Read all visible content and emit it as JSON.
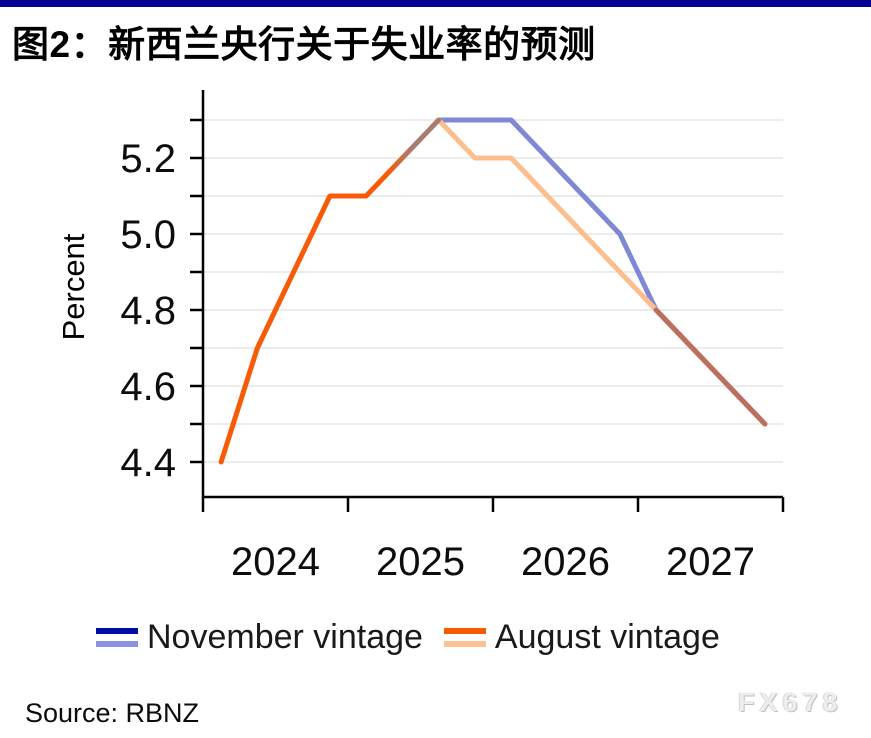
{
  "header": {
    "title": "图2：新西兰央行关于失业率的预测",
    "accent_bar_color": "#05008f"
  },
  "chart_data": {
    "type": "line",
    "title": "图2：新西兰央行关于失业率的预测",
    "xlabel": "",
    "ylabel": "Percent",
    "ylim": [
      4.35,
      5.35
    ],
    "grid": "horizontal",
    "legend_position": "bottom",
    "x": [
      "2024Q1",
      "2024Q2",
      "2024Q3",
      "2024Q4",
      "2025Q1",
      "2025Q2",
      "2025Q3",
      "2025Q4",
      "2026Q1",
      "2026Q2",
      "2026Q3",
      "2026Q4",
      "2027Q1",
      "2027Q2",
      "2027Q3",
      "2027Q4"
    ],
    "x_year_labels": [
      "2024",
      "2025",
      "2026",
      "2027"
    ],
    "y_gridlines": [
      4.4,
      4.5,
      4.6,
      4.7,
      4.8,
      4.9,
      5.0,
      5.1,
      5.2,
      5.3
    ],
    "y_tick_labels": [
      "5.2",
      "5.0",
      "4.8",
      "4.6",
      "4.4"
    ],
    "series": [
      {
        "name": "November vintage",
        "line_color": "#7e88d4",
        "values": [
          4.4,
          4.7,
          4.9,
          5.1,
          5.1,
          5.2,
          5.3,
          5.3,
          5.3,
          5.2,
          5.1,
          5.0,
          4.8,
          4.7,
          4.6,
          4.5
        ]
      },
      {
        "name": "August vintage",
        "line_color": "#fbbe8c",
        "values": [
          4.4,
          4.7,
          4.9,
          5.1,
          5.1,
          5.2,
          5.3,
          5.2,
          5.2,
          5.1,
          5.0,
          4.9,
          4.8,
          4.7,
          4.6,
          4.5
        ]
      }
    ],
    "history_line_color": "#f85b07",
    "overlap": {
      "rise_end_index": 6,
      "tail_start_index": 12,
      "rise_blend_color": "#a87d70",
      "tail_blend_color": "#bd6f5f"
    }
  },
  "legend": {
    "items": [
      {
        "label": "November vintage",
        "swatch_top": "#000da6",
        "swatch_bottom": "#8a93dc"
      },
      {
        "label": "August vintage",
        "swatch_top": "#f55b00",
        "swatch_bottom": "#fbc193"
      }
    ]
  },
  "footer": {
    "source": "Source: RBNZ",
    "watermark": "FX678"
  }
}
